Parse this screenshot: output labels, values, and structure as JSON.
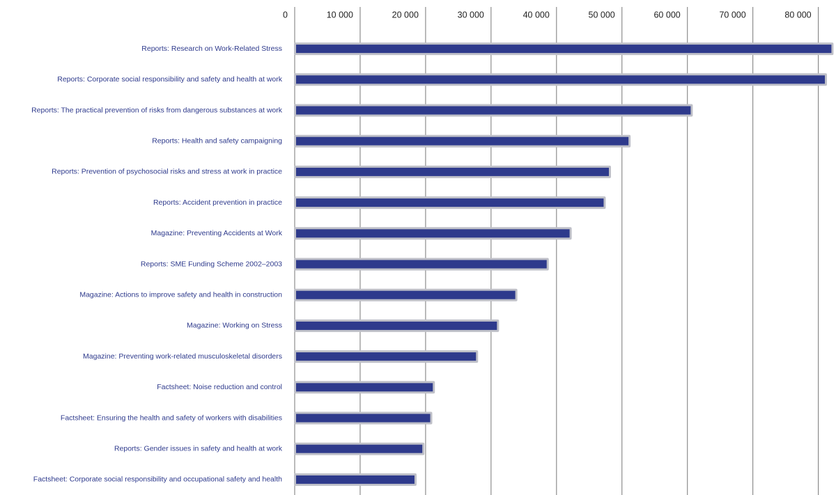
{
  "chart_data": {
    "type": "bar",
    "orientation": "horizontal",
    "categories": [
      "Reports: Research on Work-Related Stress",
      "Reports: Corporate social responsibility and safety and health at work",
      "Reports: The practical prevention of risks from dangerous substances at work",
      "Reports: Health and safety campaigning",
      "Reports: Prevention of psychosocial risks and stress at work in practice",
      "Reports: Accident prevention in practice",
      "Magazine: Preventing Accidents at Work",
      "Reports: SME Funding Scheme 2002–2003",
      "Magazine: Actions to improve safety and health in construction",
      "Magazine: Working on Stress",
      "Magazine: Preventing work-related musculoskeletal disorders",
      "Factsheet: Noise reduction and control",
      "Factsheet: Ensuring the health and safety of workers with disabilities",
      "Reports: Gender issues in safety and health at work",
      "Factsheet: Corporate social responsibility and occupational safety and health"
    ],
    "values": [
      82000,
      81000,
      60500,
      51000,
      48000,
      47200,
      42000,
      38500,
      33700,
      30900,
      27700,
      21100,
      20700,
      19500,
      18300
    ],
    "color": "#2e3a8c",
    "xlim": [
      0,
      82700
    ],
    "xticks": [
      0,
      {
        "value": 10000,
        "label": "10 000"
      },
      {
        "value": 20000,
        "label": "20 000"
      },
      {
        "value": 30000,
        "label": "30 000"
      },
      {
        "value": 40000,
        "label": "40 000"
      },
      {
        "value": 50000,
        "label": "50 000"
      },
      {
        "value": 60000,
        "label": "60 000"
      },
      {
        "value": 70000,
        "label": "70 000"
      },
      {
        "value": 80000,
        "label": "80 000"
      }
    ],
    "grid": true
  }
}
